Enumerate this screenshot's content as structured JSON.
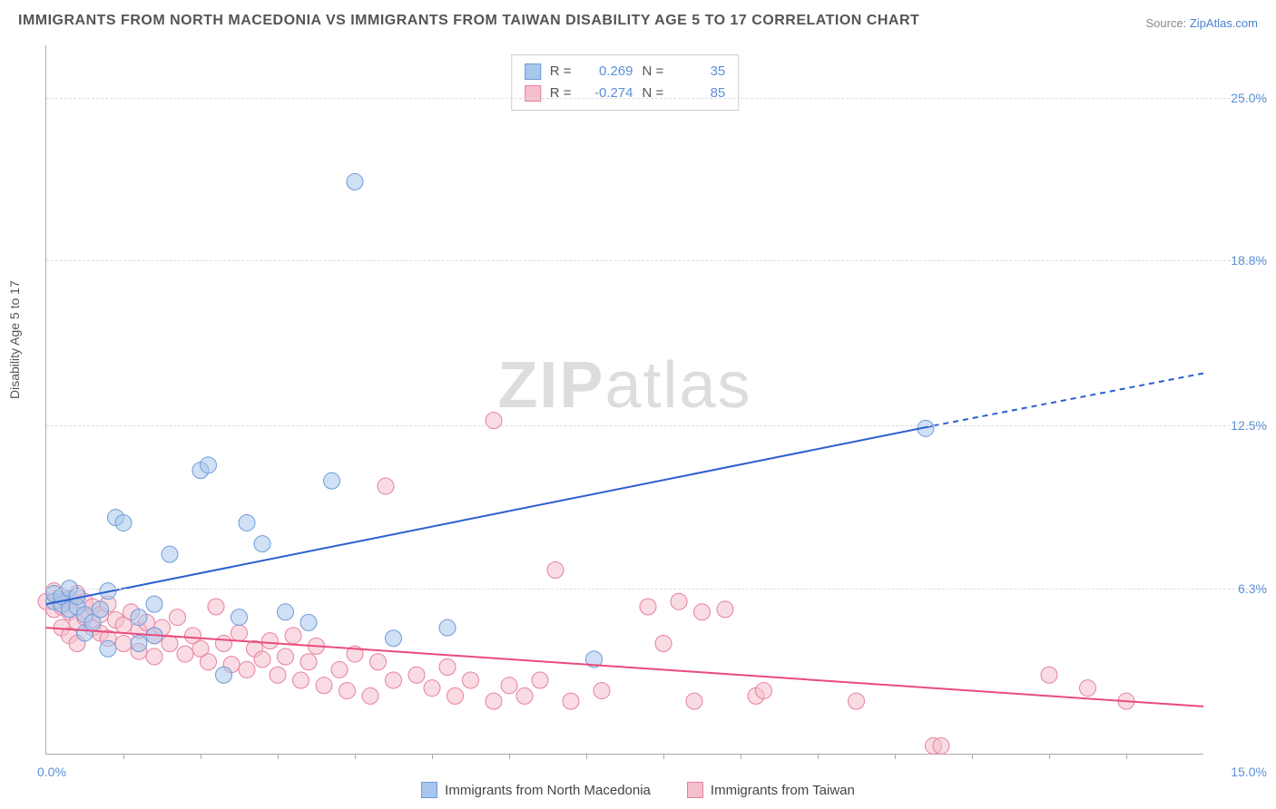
{
  "title": "IMMIGRANTS FROM NORTH MACEDONIA VS IMMIGRANTS FROM TAIWAN DISABILITY AGE 5 TO 17 CORRELATION CHART",
  "source_prefix": "Source: ",
  "source_link": "ZipAtlas.com",
  "ylabel": "Disability Age 5 to 17",
  "watermark_a": "ZIP",
  "watermark_b": "atlas",
  "chart": {
    "type": "scatter",
    "xlim": [
      0,
      15
    ],
    "ylim": [
      0,
      27
    ],
    "x_tick_start_pct": 0.0,
    "x_tick_end_pct": 15.0,
    "x_tick_labels": [
      "0.0%",
      "15.0%"
    ],
    "x_minor_ticks": [
      1,
      2,
      3,
      4,
      5,
      6,
      7,
      8,
      9,
      10,
      11,
      12,
      13,
      14
    ],
    "y_ticks": [
      6.3,
      12.5,
      18.8,
      25.0
    ],
    "y_tick_labels": [
      "6.3%",
      "12.5%",
      "18.8%",
      "25.0%"
    ],
    "background_color": "#ffffff",
    "grid_color": "#dddddd",
    "axis_color": "#aaaaaa",
    "marker_radius": 9,
    "marker_opacity": 0.55,
    "series": [
      {
        "name": "Immigrants from North Macedonia",
        "color_fill": "#a9c6ec",
        "color_stroke": "#6d9bd8",
        "r_value": "0.269",
        "n_value": "35",
        "regression": {
          "x1": 0,
          "y1": 5.7,
          "x2": 11.5,
          "y2": 12.5,
          "x2_dash": 15,
          "y2_dash": 14.5,
          "color": "#2a5fd0",
          "width": 2
        },
        "points": [
          [
            0.1,
            5.8
          ],
          [
            0.1,
            6.1
          ],
          [
            0.2,
            5.7
          ],
          [
            0.2,
            6.0
          ],
          [
            0.3,
            5.5
          ],
          [
            0.3,
            6.3
          ],
          [
            0.4,
            5.6
          ],
          [
            0.4,
            6.0
          ],
          [
            0.5,
            4.6
          ],
          [
            0.5,
            5.3
          ],
          [
            0.6,
            5.0
          ],
          [
            0.7,
            5.5
          ],
          [
            0.8,
            6.2
          ],
          [
            0.8,
            4.0
          ],
          [
            0.9,
            9.0
          ],
          [
            1.0,
            8.8
          ],
          [
            1.2,
            5.2
          ],
          [
            1.2,
            4.2
          ],
          [
            1.4,
            5.7
          ],
          [
            1.4,
            4.5
          ],
          [
            1.6,
            7.6
          ],
          [
            2.0,
            10.8
          ],
          [
            2.1,
            11.0
          ],
          [
            2.3,
            3.0
          ],
          [
            2.5,
            5.2
          ],
          [
            2.6,
            8.8
          ],
          [
            2.8,
            8.0
          ],
          [
            3.1,
            5.4
          ],
          [
            3.4,
            5.0
          ],
          [
            3.7,
            10.4
          ],
          [
            4.0,
            21.8
          ],
          [
            4.5,
            4.4
          ],
          [
            5.2,
            4.8
          ],
          [
            7.1,
            3.6
          ],
          [
            11.4,
            12.4
          ]
        ]
      },
      {
        "name": "Immigrants from Taiwan",
        "color_fill": "#f4c0cc",
        "color_stroke": "#e77f9d",
        "r_value": "-0.274",
        "n_value": "85",
        "regression": {
          "x1": 0,
          "y1": 4.8,
          "x2": 15,
          "y2": 1.8,
          "color": "#e94b7a",
          "width": 2
        },
        "points": [
          [
            0.0,
            5.8
          ],
          [
            0.1,
            6.2
          ],
          [
            0.1,
            5.5
          ],
          [
            0.2,
            6.0
          ],
          [
            0.2,
            5.6
          ],
          [
            0.2,
            4.8
          ],
          [
            0.3,
            5.9
          ],
          [
            0.3,
            5.4
          ],
          [
            0.3,
            4.5
          ],
          [
            0.4,
            6.1
          ],
          [
            0.4,
            5.0
          ],
          [
            0.4,
            4.2
          ],
          [
            0.5,
            5.8
          ],
          [
            0.5,
            5.2
          ],
          [
            0.6,
            5.6
          ],
          [
            0.6,
            4.8
          ],
          [
            0.7,
            5.3
          ],
          [
            0.7,
            4.6
          ],
          [
            0.8,
            5.7
          ],
          [
            0.8,
            4.4
          ],
          [
            0.9,
            5.1
          ],
          [
            1.0,
            4.9
          ],
          [
            1.0,
            4.2
          ],
          [
            1.1,
            5.4
          ],
          [
            1.2,
            4.7
          ],
          [
            1.2,
            3.9
          ],
          [
            1.3,
            5.0
          ],
          [
            1.4,
            4.5
          ],
          [
            1.4,
            3.7
          ],
          [
            1.5,
            4.8
          ],
          [
            1.6,
            4.2
          ],
          [
            1.7,
            5.2
          ],
          [
            1.8,
            3.8
          ],
          [
            1.9,
            4.5
          ],
          [
            2.0,
            4.0
          ],
          [
            2.1,
            3.5
          ],
          [
            2.2,
            5.6
          ],
          [
            2.3,
            4.2
          ],
          [
            2.4,
            3.4
          ],
          [
            2.5,
            4.6
          ],
          [
            2.6,
            3.2
          ],
          [
            2.7,
            4.0
          ],
          [
            2.8,
            3.6
          ],
          [
            2.9,
            4.3
          ],
          [
            3.0,
            3.0
          ],
          [
            3.1,
            3.7
          ],
          [
            3.2,
            4.5
          ],
          [
            3.3,
            2.8
          ],
          [
            3.4,
            3.5
          ],
          [
            3.5,
            4.1
          ],
          [
            3.6,
            2.6
          ],
          [
            3.8,
            3.2
          ],
          [
            3.9,
            2.4
          ],
          [
            4.0,
            3.8
          ],
          [
            4.2,
            2.2
          ],
          [
            4.3,
            3.5
          ],
          [
            4.4,
            10.2
          ],
          [
            4.5,
            2.8
          ],
          [
            4.8,
            3.0
          ],
          [
            5.0,
            2.5
          ],
          [
            5.2,
            3.3
          ],
          [
            5.3,
            2.2
          ],
          [
            5.5,
            2.8
          ],
          [
            5.8,
            2.0
          ],
          [
            5.8,
            12.7
          ],
          [
            6.0,
            2.6
          ],
          [
            6.2,
            2.2
          ],
          [
            6.4,
            2.8
          ],
          [
            6.6,
            7.0
          ],
          [
            6.8,
            2.0
          ],
          [
            7.2,
            2.4
          ],
          [
            7.8,
            5.6
          ],
          [
            8.0,
            4.2
          ],
          [
            8.2,
            5.8
          ],
          [
            8.4,
            2.0
          ],
          [
            8.5,
            5.4
          ],
          [
            8.8,
            5.5
          ],
          [
            9.2,
            2.2
          ],
          [
            9.3,
            2.4
          ],
          [
            10.5,
            2.0
          ],
          [
            11.5,
            0.3
          ],
          [
            11.6,
            0.3
          ],
          [
            13.0,
            3.0
          ],
          [
            13.5,
            2.5
          ],
          [
            14.0,
            2.0
          ]
        ]
      }
    ]
  },
  "legend": {
    "series1_label": "Immigrants from North Macedonia",
    "series2_label": "Immigrants from Taiwan"
  },
  "stats_box": {
    "r_label": "R  =",
    "n_label": "N  ="
  }
}
